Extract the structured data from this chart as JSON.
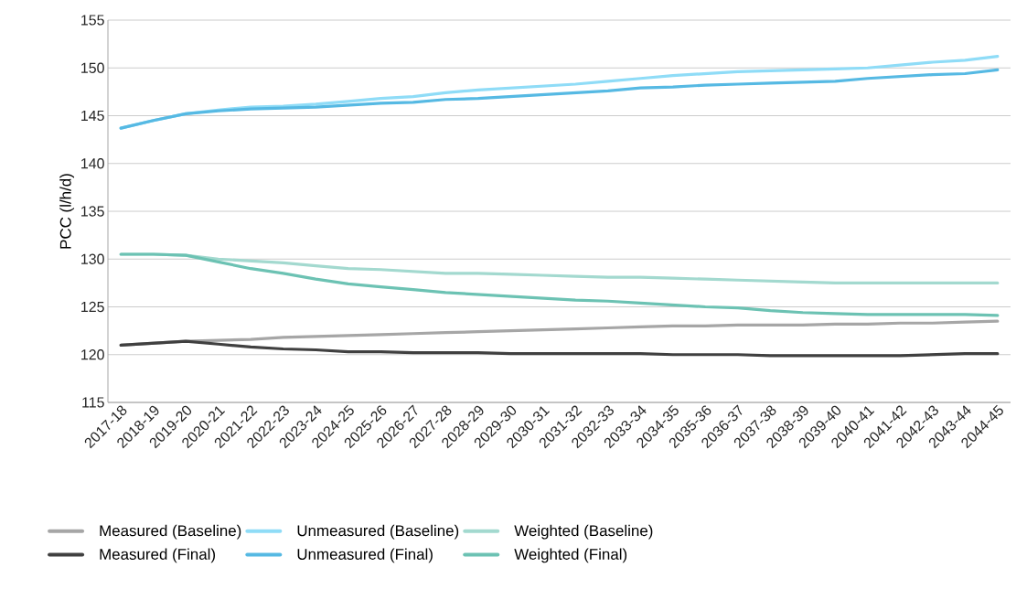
{
  "chart_data": {
    "type": "line",
    "ylabel": "PCC (l/h/d)",
    "categories": [
      "2017-18",
      "2018-19",
      "2019-20",
      "2020-21",
      "2021-22",
      "2022-23",
      "2023-24",
      "2024-25",
      "2025-26",
      "2026-27",
      "2027-28",
      "2028-29",
      "2029-30",
      "2030-31",
      "2031-32",
      "2032-33",
      "2033-34",
      "2034-35",
      "2035-36",
      "2036-37",
      "2037-38",
      "2038-39",
      "2039-40",
      "2040-41",
      "2041-42",
      "2042-43",
      "2043-44",
      "2044-45"
    ],
    "ylim": [
      115,
      155
    ],
    "yticks": [
      115,
      120,
      125,
      130,
      135,
      140,
      145,
      150,
      155
    ],
    "grid": "y",
    "legend": "bottom",
    "marker": "none",
    "line_style": "solid",
    "series": [
      {
        "name": "Measured (Baseline)",
        "color": "#a6a6a6",
        "values": [
          121.0,
          121.2,
          121.4,
          121.5,
          121.6,
          121.8,
          121.9,
          122.0,
          122.1,
          122.2,
          122.3,
          122.4,
          122.5,
          122.6,
          122.7,
          122.8,
          122.9,
          123.0,
          123.0,
          123.1,
          123.1,
          123.1,
          123.2,
          123.2,
          123.3,
          123.3,
          123.4,
          123.5
        ]
      },
      {
        "name": "Unmeasured (Baseline)",
        "color": "#8fdcf7",
        "values": [
          143.7,
          144.5,
          145.2,
          145.6,
          145.9,
          146.0,
          146.2,
          146.5,
          146.8,
          147.0,
          147.4,
          147.7,
          147.9,
          148.1,
          148.3,
          148.6,
          148.9,
          149.2,
          149.4,
          149.6,
          149.7,
          149.8,
          149.9,
          150.0,
          150.3,
          150.6,
          150.8,
          151.2
        ]
      },
      {
        "name": "Weighted (Baseline)",
        "color": "#a3d9cf",
        "values": [
          130.5,
          130.5,
          130.4,
          130.0,
          129.8,
          129.6,
          129.3,
          129.0,
          128.9,
          128.7,
          128.5,
          128.5,
          128.4,
          128.3,
          128.2,
          128.1,
          128.1,
          128.0,
          127.9,
          127.8,
          127.7,
          127.6,
          127.5,
          127.5,
          127.5,
          127.5,
          127.5,
          127.5
        ]
      },
      {
        "name": "Measured (Final)",
        "color": "#404040",
        "values": [
          121.0,
          121.2,
          121.4,
          121.1,
          120.8,
          120.6,
          120.5,
          120.3,
          120.3,
          120.2,
          120.2,
          120.2,
          120.1,
          120.1,
          120.1,
          120.1,
          120.1,
          120.0,
          120.0,
          120.0,
          119.9,
          119.9,
          119.9,
          119.9,
          119.9,
          120.0,
          120.1,
          120.1
        ]
      },
      {
        "name": "Unmeasured (Final)",
        "color": "#56b9e3",
        "values": [
          143.7,
          144.5,
          145.2,
          145.5,
          145.7,
          145.8,
          145.9,
          146.1,
          146.3,
          146.4,
          146.7,
          146.8,
          147.0,
          147.2,
          147.4,
          147.6,
          147.9,
          148.0,
          148.2,
          148.3,
          148.4,
          148.5,
          148.6,
          148.9,
          149.1,
          149.3,
          149.4,
          149.8
        ]
      },
      {
        "name": "Weighted (Final)",
        "color": "#6cc2b3",
        "values": [
          130.5,
          130.5,
          130.4,
          129.7,
          129.0,
          128.5,
          127.9,
          127.4,
          127.1,
          126.8,
          126.5,
          126.3,
          126.1,
          125.9,
          125.7,
          125.6,
          125.4,
          125.2,
          125.0,
          124.9,
          124.6,
          124.4,
          124.3,
          124.2,
          124.2,
          124.2,
          124.2,
          124.1
        ]
      }
    ]
  }
}
